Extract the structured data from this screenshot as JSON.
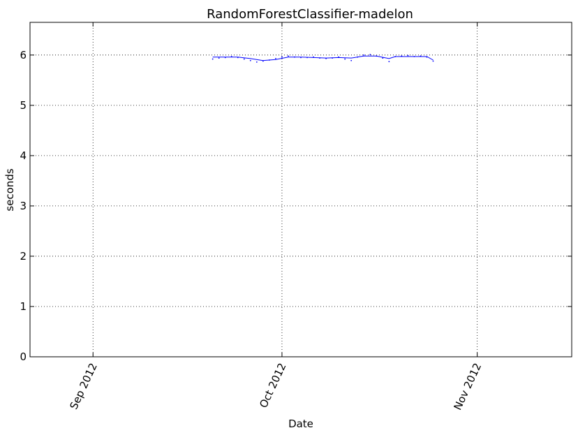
{
  "chart_data": {
    "type": "line",
    "title": "RandomForestClassifier-madelon",
    "xlabel": "Date",
    "ylabel": "seconds",
    "xlim": [
      "2012-08-22",
      "2012-11-16"
    ],
    "ylim": [
      0,
      6.65
    ],
    "yticks": [
      0,
      1,
      2,
      3,
      4,
      5,
      6
    ],
    "xticks": [
      {
        "date": "2012-09-01",
        "label": "Sep 2012"
      },
      {
        "date": "2012-10-01",
        "label": "Oct 2012"
      },
      {
        "date": "2012-11-01",
        "label": "Nov 2012"
      }
    ],
    "grid": true,
    "series": [
      {
        "style": "points",
        "color": "#0000ff",
        "x": [
          "2012-09-20",
          "2012-09-21",
          "2012-09-22",
          "2012-09-23",
          "2012-09-24",
          "2012-09-25",
          "2012-09-26",
          "2012-09-27",
          "2012-09-28",
          "2012-09-29",
          "2012-09-30",
          "2012-10-01",
          "2012-10-02",
          "2012-10-03",
          "2012-10-04",
          "2012-10-05",
          "2012-10-06",
          "2012-10-07",
          "2012-10-08",
          "2012-10-09",
          "2012-10-10",
          "2012-10-11",
          "2012-10-12",
          "2012-10-13",
          "2012-10-14",
          "2012-10-15",
          "2012-10-16",
          "2012-10-17",
          "2012-10-18",
          "2012-10-19",
          "2012-10-20",
          "2012-10-21",
          "2012-10-22",
          "2012-10-23",
          "2012-10-24",
          "2012-10-25"
        ],
        "values": [
          5.92,
          5.94,
          5.95,
          5.97,
          5.95,
          5.92,
          5.89,
          5.86,
          5.88,
          5.9,
          5.93,
          5.96,
          5.98,
          5.96,
          5.95,
          5.95,
          5.96,
          5.94,
          5.93,
          5.94,
          5.96,
          5.92,
          5.89,
          5.96,
          6.0,
          6.01,
          5.98,
          5.94,
          5.87,
          5.97,
          5.98,
          5.99,
          5.97,
          5.98,
          5.96,
          5.88
        ]
      },
      {
        "style": "line",
        "color": "#0000ff",
        "x": [
          "2012-09-20",
          "2012-09-22",
          "2012-09-24",
          "2012-09-26",
          "2012-09-28",
          "2012-09-30",
          "2012-10-02",
          "2012-10-04",
          "2012-10-06",
          "2012-10-08",
          "2012-10-10",
          "2012-10-12",
          "2012-10-14",
          "2012-10-16",
          "2012-10-18",
          "2012-10-19",
          "2012-10-20",
          "2012-10-22",
          "2012-10-24",
          "2012-10-25"
        ],
        "values": [
          5.96,
          5.96,
          5.96,
          5.93,
          5.89,
          5.91,
          5.96,
          5.96,
          5.95,
          5.94,
          5.95,
          5.94,
          5.98,
          5.98,
          5.93,
          5.97,
          5.97,
          5.97,
          5.97,
          5.9
        ]
      }
    ]
  }
}
